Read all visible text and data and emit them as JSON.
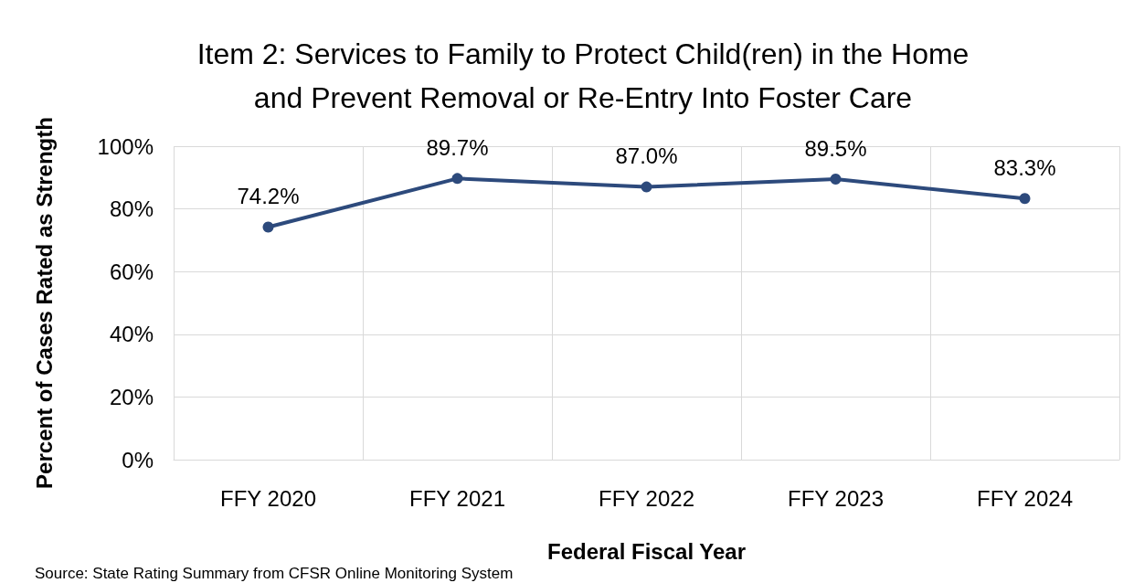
{
  "chart_data": {
    "type": "line",
    "title": "Item 2: Services to Family to Protect Child(ren) in the Home\nand Prevent Removal or Re-Entry Into Foster Care",
    "xlabel": "Federal Fiscal Year",
    "ylabel": "Percent of Cases Rated as Strength",
    "annotations": [
      "Source: State Rating Summary from CFSR Online Monitoring System"
    ],
    "categories": [
      "FFY 2020",
      "FFY 2021",
      "FFY 2022",
      "FFY 2023",
      "FFY 2024"
    ],
    "series": [
      {
        "color": "#2d4a7c",
        "values": [
          74.2,
          89.7,
          87.0,
          89.5,
          83.3
        ],
        "value_labels": [
          "74.2%",
          "89.7%",
          "87.0%",
          "89.5%",
          "83.3%"
        ]
      }
    ],
    "ylim": [
      0,
      100
    ],
    "yticks": [
      {
        "value": 0,
        "label": "0%"
      },
      {
        "value": 20,
        "label": "20%"
      },
      {
        "value": 40,
        "label": "40%"
      },
      {
        "value": 60,
        "label": "60%"
      },
      {
        "value": 80,
        "label": "80%"
      },
      {
        "value": 100,
        "label": "100%"
      }
    ],
    "grid": true,
    "marker": "circle",
    "line_style": "solid"
  }
}
